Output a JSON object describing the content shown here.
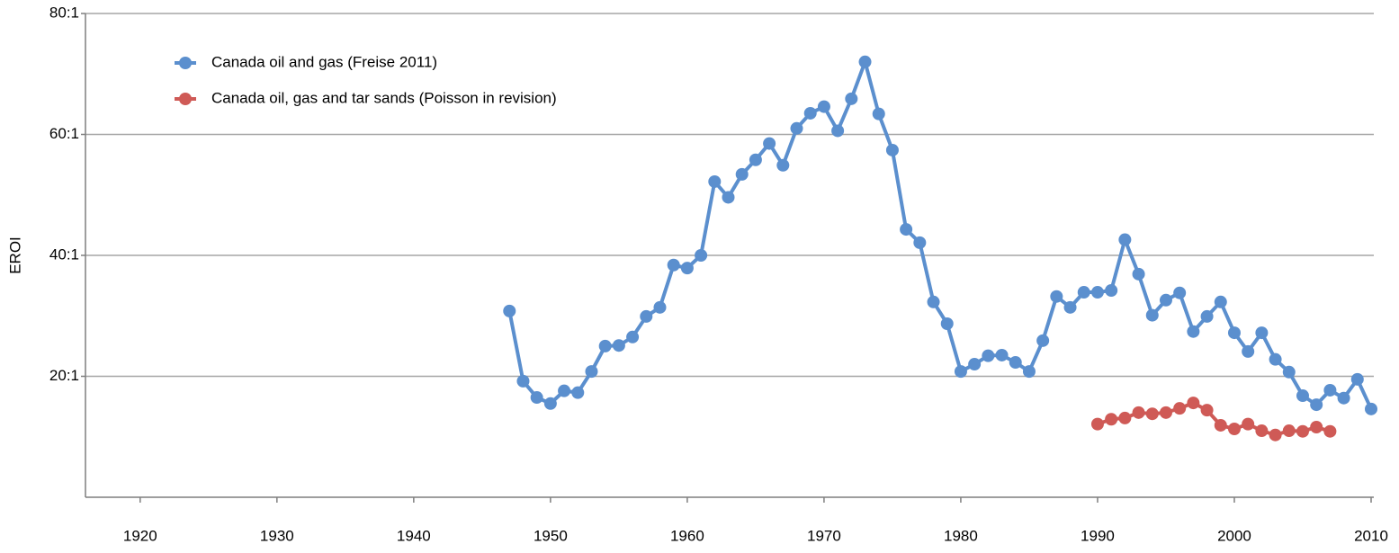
{
  "chart_data": {
    "type": "line",
    "y_label": "EROI",
    "x": [
      1947,
      1948,
      1949,
      1950,
      1951,
      1952,
      1953,
      1954,
      1955,
      1956,
      1957,
      1958,
      1959,
      1960,
      1961,
      1962,
      1963,
      1964,
      1965,
      1966,
      1967,
      1968,
      1969,
      1970,
      1971,
      1972,
      1973,
      1974,
      1975,
      1976,
      1977,
      1978,
      1979,
      1980,
      1981,
      1982,
      1983,
      1984,
      1985,
      1986,
      1987,
      1988,
      1989,
      1990,
      1991,
      1992,
      1993,
      1994,
      1995,
      1996,
      1997,
      1998,
      1999,
      2000,
      2001,
      2002,
      2003,
      2004,
      2005,
      2006,
      2007,
      2008,
      2009,
      2010
    ],
    "series": [
      {
        "name": "Canada oil and gas (Freise 2011)",
        "color": "#5b8fce",
        "values": [
          30.8,
          19.2,
          16.5,
          15.5,
          17.6,
          17.3,
          20.8,
          25.0,
          25.1,
          26.5,
          29.9,
          31.4,
          38.4,
          37.9,
          40.0,
          52.2,
          49.6,
          53.4,
          55.8,
          58.5,
          54.9,
          61.0,
          63.5,
          64.6,
          60.6,
          65.9,
          72.0,
          63.4,
          57.4,
          44.3,
          42.1,
          32.3,
          28.7,
          20.8,
          22.0,
          23.4,
          23.5,
          22.3,
          20.8,
          25.9,
          33.2,
          31.4,
          33.9,
          33.9,
          34.2,
          42.6,
          36.9,
          30.1,
          32.6,
          33.8,
          27.4,
          29.9,
          32.3,
          27.2,
          24.1,
          27.2,
          22.8,
          20.7,
          16.8,
          15.3,
          17.7,
          16.4,
          19.5,
          14.6
        ]
      },
      {
        "name": "Canada oil, gas and tar sands (Poisson in revision)",
        "color": "#cf5a56",
        "values": [
          null,
          null,
          null,
          null,
          null,
          null,
          null,
          null,
          null,
          null,
          null,
          null,
          null,
          null,
          null,
          null,
          null,
          null,
          null,
          null,
          null,
          null,
          null,
          null,
          null,
          null,
          null,
          null,
          null,
          null,
          null,
          null,
          null,
          null,
          null,
          null,
          null,
          null,
          null,
          null,
          null,
          null,
          null,
          12.1,
          12.9,
          13.1,
          14.0,
          13.8,
          14.0,
          14.7,
          15.6,
          14.4,
          11.9,
          11.3,
          12.1,
          11.0,
          10.3,
          11.0,
          10.9,
          11.6,
          10.9,
          null,
          null,
          null
        ]
      }
    ],
    "xlim": [
      1916,
      2010
    ],
    "xticks": [
      1920,
      1930,
      1940,
      1950,
      1960,
      1970,
      1980,
      1990,
      2000,
      2010
    ],
    "ylim": [
      0,
      80
    ],
    "yticks": [
      {
        "value": 20,
        "label": "20:1"
      },
      {
        "value": 40,
        "label": "40:1"
      },
      {
        "value": 60,
        "label": "60:1"
      },
      {
        "value": 80,
        "label": "80:1"
      }
    ],
    "grid": true,
    "legend": "upper-left"
  }
}
